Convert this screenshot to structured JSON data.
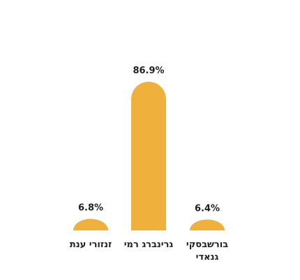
{
  "chart_data": {
    "type": "bar",
    "categories": [
      "זנזורי ענת",
      "גרינברג רמי",
      "בורשבסקי גנאדי"
    ],
    "values": [
      6.8,
      86.9,
      6.4
    ],
    "value_labels": [
      "6.8%",
      "86.9%",
      "6.4%"
    ],
    "color": "#efb13b"
  }
}
